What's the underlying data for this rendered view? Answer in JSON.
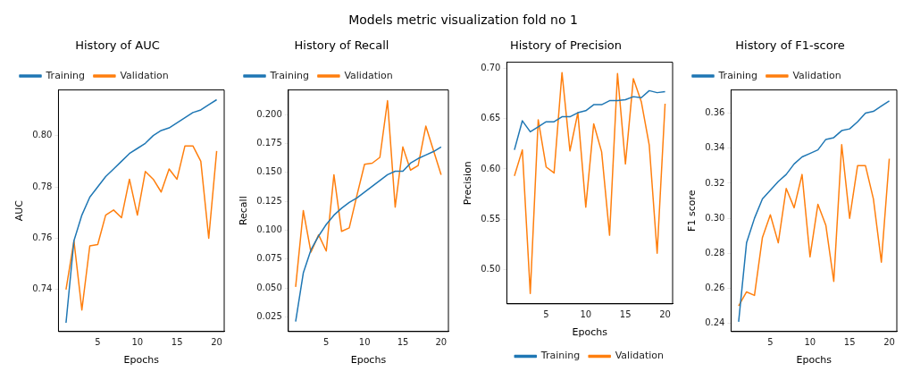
{
  "chart_data": [
    {
      "type": "line",
      "title": "History of AUC",
      "xlabel": "Epochs",
      "ylabel": "AUC",
      "annotations": [
        "Models metric visualization fold no 1"
      ],
      "x": [
        1,
        2,
        3,
        4,
        5,
        6,
        7,
        8,
        9,
        10,
        11,
        12,
        13,
        14,
        15,
        16,
        17,
        18,
        19,
        20
      ],
      "xlim": [
        0.05,
        20.95
      ],
      "xticks": [
        5,
        10,
        15,
        20
      ],
      "ylim": [
        0.7236,
        0.8178
      ],
      "yticks": [
        0.74,
        0.76,
        0.78,
        {
          "value": 0.8,
          "label": "0.80"
        }
      ],
      "grid": false,
      "legend": "top left",
      "marker": "none",
      "line_style": "solid",
      "series": [
        {
          "name": "Training",
          "color": "#1f77b4",
          "values": [
            0.727,
            0.759,
            0.769,
            0.776,
            0.78,
            0.784,
            0.787,
            0.79,
            0.793,
            0.795,
            0.797,
            0.8,
            0.802,
            0.803,
            0.805,
            0.807,
            0.809,
            0.81,
            0.812,
            0.814
          ]
        },
        {
          "name": "Validation",
          "color": "#ff7f0e",
          "values": [
            0.74,
            0.759,
            0.732,
            0.757,
            0.7575,
            0.769,
            0.771,
            0.768,
            0.783,
            0.769,
            0.786,
            0.783,
            0.778,
            0.787,
            0.783,
            0.796,
            0.796,
            0.79,
            0.76,
            0.794
          ]
        }
      ]
    },
    {
      "type": "line",
      "title": "History of Recall",
      "xlabel": "Epochs",
      "ylabel": "Recall",
      "x": [
        1,
        2,
        3,
        4,
        5,
        6,
        7,
        8,
        9,
        10,
        11,
        12,
        13,
        14,
        15,
        16,
        17,
        18,
        19,
        20
      ],
      "xlim": [
        0.05,
        20.95
      ],
      "xticks": [
        5,
        10,
        15,
        20
      ],
      "ylim": [
        0.0124,
        0.2213
      ],
      "yticks": [
        {
          "value": 0.025,
          "label": "0.025"
        },
        {
          "value": 0.05,
          "label": "0.050"
        },
        {
          "value": 0.075,
          "label": "0.075"
        },
        {
          "value": 0.1,
          "label": "0.100"
        },
        {
          "value": 0.125,
          "label": "0.125"
        },
        {
          "value": 0.15,
          "label": "0.150"
        },
        {
          "value": 0.175,
          "label": "0.175"
        },
        {
          "value": 0.2,
          "label": "0.200"
        }
      ],
      "grid": false,
      "legend": "top left",
      "marker": "none",
      "line_style": "solid",
      "series": [
        {
          "name": "Training",
          "color": "#1f77b4",
          "values": [
            0.021,
            0.063,
            0.083,
            0.095,
            0.105,
            0.113,
            0.119,
            0.124,
            0.128,
            0.133,
            0.138,
            0.143,
            0.148,
            0.151,
            0.151,
            0.158,
            0.162,
            0.165,
            0.168,
            0.172
          ]
        },
        {
          "name": "Validation",
          "color": "#ff7f0e",
          "values": [
            0.051,
            0.117,
            0.081,
            0.096,
            0.082,
            0.148,
            0.099,
            0.102,
            0.13,
            0.157,
            0.158,
            0.163,
            0.212,
            0.12,
            0.172,
            0.152,
            0.156,
            0.19,
            0.169,
            0.148
          ]
        }
      ]
    },
    {
      "type": "line",
      "title": "History of Precision",
      "xlabel": "Epochs",
      "ylabel": "Precision",
      "x": [
        1,
        2,
        3,
        4,
        5,
        6,
        7,
        8,
        9,
        10,
        11,
        12,
        13,
        14,
        15,
        16,
        17,
        18,
        19,
        20
      ],
      "xlim": [
        0.05,
        20.95
      ],
      "xticks": [
        5,
        10,
        15,
        20
      ],
      "ylim": [
        0.4657,
        0.7063
      ],
      "yticks": [
        {
          "value": 0.5,
          "label": "0.50"
        },
        {
          "value": 0.55,
          "label": "0.55"
        },
        {
          "value": 0.6,
          "label": "0.60"
        },
        {
          "value": 0.65,
          "label": "0.65"
        },
        {
          "value": 0.7,
          "label": "0.70"
        }
      ],
      "grid": false,
      "legend": "bottom right",
      "marker": "none",
      "line_style": "solid",
      "series": [
        {
          "name": "Training",
          "color": "#1f77b4",
          "values": [
            0.619,
            0.648,
            0.637,
            0.642,
            0.647,
            0.647,
            0.652,
            0.652,
            0.656,
            0.658,
            0.664,
            0.664,
            0.668,
            0.668,
            0.669,
            0.672,
            0.671,
            0.678,
            0.676,
            0.677
          ]
        },
        {
          "name": "Validation",
          "color": "#ff7f0e",
          "values": [
            0.593,
            0.619,
            0.476,
            0.649,
            0.602,
            0.596,
            0.696,
            0.618,
            0.656,
            0.562,
            0.645,
            0.617,
            0.534,
            0.695,
            0.605,
            0.69,
            0.667,
            0.624,
            0.516,
            0.665
          ]
        }
      ]
    },
    {
      "type": "line",
      "title": "History of F1-score",
      "xlabel": "Epochs",
      "ylabel": "F1 score",
      "x": [
        1,
        2,
        3,
        4,
        5,
        6,
        7,
        8,
        9,
        10,
        11,
        12,
        13,
        14,
        15,
        16,
        17,
        18,
        19,
        20
      ],
      "xlim": [
        0.05,
        20.95
      ],
      "xticks": [
        5,
        10,
        15,
        20
      ],
      "ylim": [
        0.2354,
        0.3732
      ],
      "yticks": [
        {
          "value": 0.24,
          "label": "0.24"
        },
        {
          "value": 0.26,
          "label": "0.26"
        },
        {
          "value": 0.28,
          "label": "0.28"
        },
        {
          "value": 0.3,
          "label": "0.30"
        },
        {
          "value": 0.32,
          "label": "0.32"
        },
        {
          "value": 0.34,
          "label": "0.34"
        },
        {
          "value": 0.36,
          "label": "0.36"
        }
      ],
      "grid": false,
      "legend": "top left",
      "marker": "none",
      "line_style": "solid",
      "series": [
        {
          "name": "Training",
          "color": "#1f77b4",
          "values": [
            0.241,
            0.286,
            0.3,
            0.311,
            0.316,
            0.321,
            0.325,
            0.331,
            0.335,
            0.337,
            0.339,
            0.345,
            0.346,
            0.35,
            0.351,
            0.355,
            0.36,
            0.361,
            0.364,
            0.367
          ]
        },
        {
          "name": "Validation",
          "color": "#ff7f0e",
          "values": [
            0.25,
            0.258,
            0.256,
            0.289,
            0.302,
            0.286,
            0.317,
            0.306,
            0.325,
            0.278,
            0.308,
            0.296,
            0.264,
            0.342,
            0.3,
            0.33,
            0.33,
            0.311,
            0.275,
            0.334
          ]
        }
      ]
    }
  ]
}
